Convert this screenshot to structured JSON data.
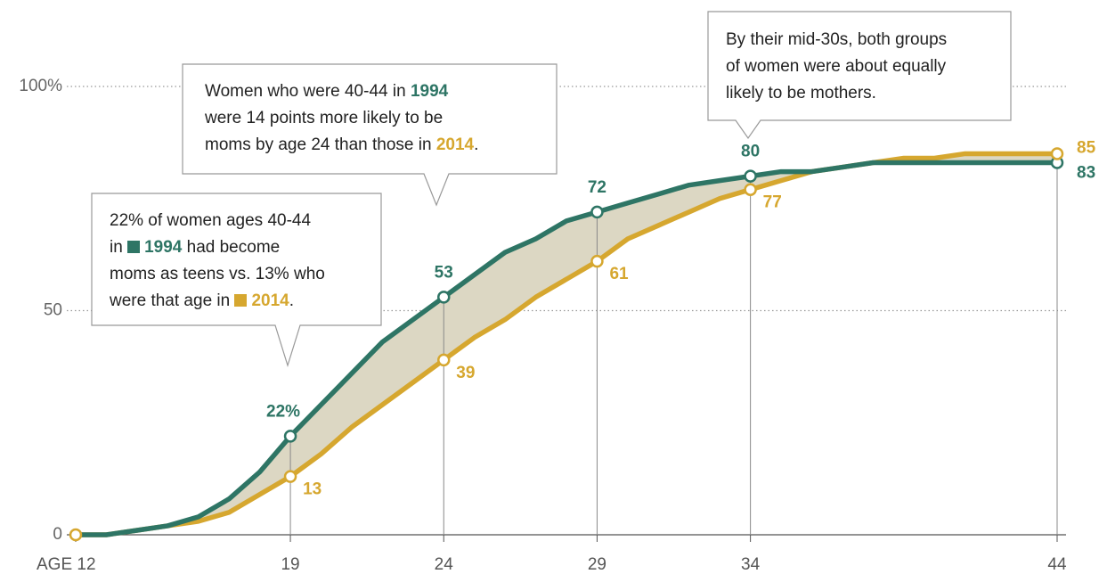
{
  "chart_data": {
    "type": "line",
    "x": [
      12,
      13,
      14,
      15,
      16,
      17,
      18,
      19,
      20,
      21,
      22,
      23,
      24,
      25,
      26,
      27,
      28,
      29,
      30,
      31,
      32,
      33,
      34,
      35,
      36,
      37,
      38,
      39,
      40,
      41,
      42,
      43,
      44
    ],
    "xlim": [
      12,
      44
    ],
    "xticks": [
      {
        "value": 12,
        "label": "AGE 12"
      },
      19,
      24,
      29,
      34,
      44
    ],
    "ylim": [
      0,
      100
    ],
    "yticks": [
      0,
      50,
      {
        "value": 100,
        "label": "100%"
      }
    ],
    "grid": true,
    "area_color": "#dcd7c3",
    "series": [
      {
        "name": "1994",
        "color": "#2e7565",
        "values": [
          0,
          0,
          1,
          2,
          4,
          8,
          14,
          22,
          29,
          36,
          43,
          48,
          53,
          58,
          63,
          66,
          70,
          72,
          74,
          76,
          78,
          79,
          80,
          81,
          81,
          82,
          83,
          83,
          83,
          83,
          83,
          83,
          83
        ],
        "value_labels": [
          null,
          null,
          null,
          null,
          null,
          null,
          null,
          "22%",
          null,
          null,
          null,
          null,
          "53",
          null,
          null,
          null,
          null,
          "72",
          null,
          null,
          null,
          null,
          "80",
          null,
          null,
          null,
          null,
          null,
          null,
          null,
          null,
          null,
          "83"
        ]
      },
      {
        "name": "2014",
        "color": "#d6a72f",
        "values": [
          0,
          0,
          1,
          2,
          3,
          5,
          9,
          13,
          18,
          24,
          29,
          34,
          39,
          44,
          48,
          53,
          57,
          61,
          66,
          69,
          72,
          75,
          77,
          79,
          81,
          82,
          83,
          84,
          84,
          85,
          85,
          85,
          85
        ],
        "value_labels": [
          null,
          null,
          null,
          null,
          null,
          null,
          null,
          "13",
          null,
          null,
          null,
          null,
          "39",
          null,
          null,
          null,
          null,
          "61",
          null,
          null,
          null,
          null,
          "77",
          null,
          null,
          null,
          null,
          null,
          null,
          null,
          null,
          null,
          "85"
        ]
      }
    ],
    "annotations": [
      {
        "lines": [
          [
            {
              "text": "22% of women ages 40-44"
            }
          ],
          [
            {
              "text": "in "
            },
            {
              "text": "1994",
              "color": "#2e7565",
              "swatch": true
            },
            {
              "text": " had become"
            }
          ],
          [
            {
              "text": "moms as teens vs. 13% who"
            }
          ],
          [
            {
              "text": "were that age in "
            },
            {
              "text": "2014",
              "color": "#d6a72f",
              "swatch": true
            },
            {
              "text": "."
            }
          ]
        ]
      },
      {
        "lines": [
          [
            {
              "text": "Women who were 40-44 in "
            },
            {
              "text": "1994",
              "color": "#2e7565"
            }
          ],
          [
            {
              "text": "were 14 points more likely to be"
            }
          ],
          [
            {
              "text": "moms by age 24 than those in "
            },
            {
              "text": "2014",
              "color": "#d6a72f"
            },
            {
              "text": "."
            }
          ]
        ]
      },
      {
        "lines": [
          [
            {
              "text": "By their mid-30s, both groups"
            }
          ],
          [
            {
              "text": "of women were about equally"
            }
          ],
          [
            {
              "text": "likely to be mothers."
            }
          ]
        ]
      }
    ]
  }
}
